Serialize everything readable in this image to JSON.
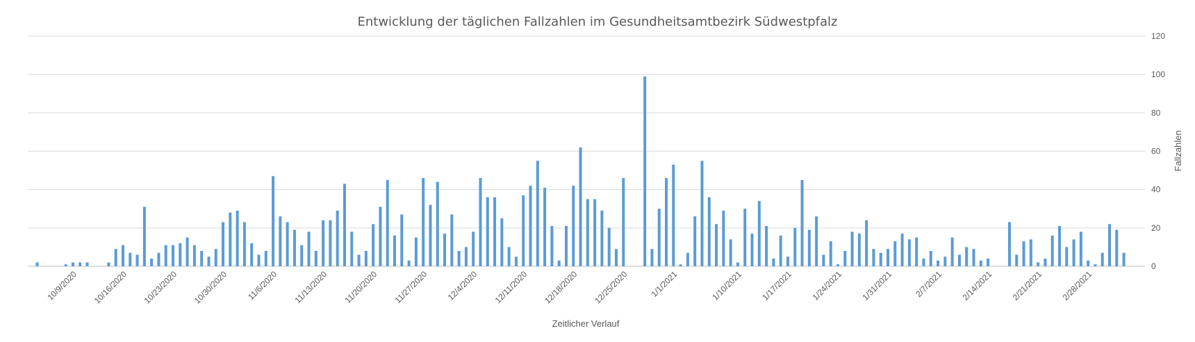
{
  "chart_data": {
    "type": "bar",
    "title": "Entwicklung der täglichen Fallzahlen im Gesundheitsamtbezirk Südwestpfalz",
    "xlabel": "Zeitlicher Verlauf",
    "ylabel": "Fallzahlen",
    "ylim": [
      0,
      120
    ],
    "y_ticks": [
      0,
      20,
      40,
      60,
      80,
      100,
      120
    ],
    "y_axis_side": "right",
    "grid": true,
    "legend": "none",
    "bar_color": "#5b9bd5",
    "x_start": "10/4/2020",
    "x_tick_labels": [
      "10/9/2020",
      "10/16/2020",
      "10/23/2020",
      "10/30/2020",
      "11/6/2020",
      "11/13/2020",
      "11/20/2020",
      "11/27/2020",
      "12/4/2020",
      "12/11/2020",
      "12/18/2020",
      "12/25/2020",
      "1/1/2021",
      "1/10/2021",
      "1/17/2021",
      "1/24/2021",
      "1/31/2021",
      "2/7/2021",
      "2/14/2021",
      "2/21/2021",
      "2/28/2021"
    ],
    "values": [
      2,
      0,
      0,
      0,
      1,
      2,
      2,
      2,
      0,
      0,
      2,
      9,
      11,
      7,
      6,
      31,
      4,
      7,
      11,
      11,
      12,
      15,
      11,
      8,
      5,
      9,
      23,
      28,
      29,
      23,
      12,
      6,
      8,
      47,
      26,
      23,
      19,
      11,
      18,
      8,
      24,
      24,
      29,
      43,
      18,
      6,
      8,
      22,
      31,
      45,
      16,
      27,
      3,
      15,
      46,
      32,
      44,
      17,
      27,
      8,
      10,
      18,
      46,
      36,
      36,
      25,
      10,
      5,
      37,
      42,
      55,
      41,
      21,
      3,
      21,
      42,
      62,
      35,
      35,
      29,
      20,
      9,
      46,
      0,
      0,
      99,
      9,
      30,
      46,
      53,
      1,
      7,
      26,
      55,
      36,
      22,
      29,
      14,
      2,
      30,
      17,
      34,
      21,
      4,
      16,
      5,
      20,
      45,
      19,
      26,
      6,
      13,
      1,
      8,
      18,
      17,
      24,
      9,
      7,
      9,
      13,
      17,
      14,
      15,
      4,
      8,
      3,
      5,
      15,
      6,
      10,
      9,
      3,
      4,
      0,
      0,
      23,
      6,
      13,
      14,
      2,
      4,
      16,
      21,
      10,
      14,
      18,
      3,
      1,
      7,
      22,
      19,
      7
    ]
  }
}
